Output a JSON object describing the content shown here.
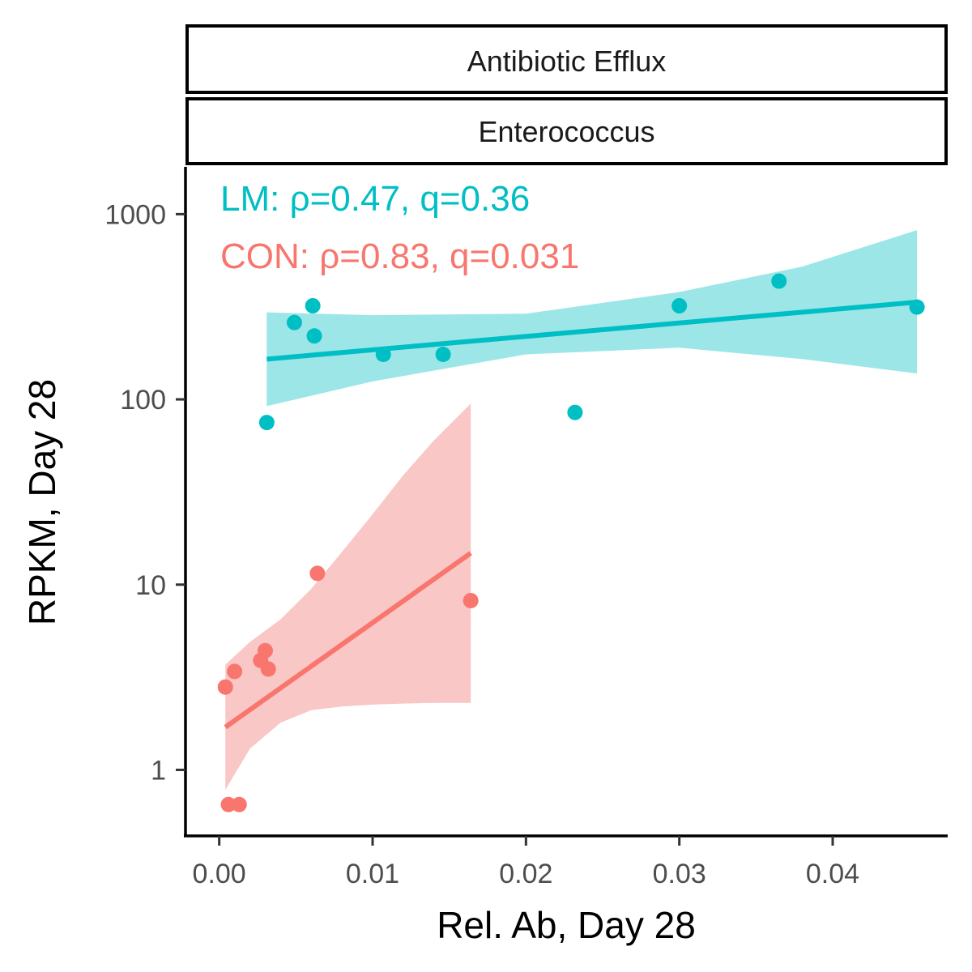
{
  "chart_data": {
    "type": "scatter",
    "facet_strips": [
      "Antibiotic Efflux",
      "Enterococcus"
    ],
    "xlabel": "Rel. Ab, Day 28",
    "ylabel": "RPKM, Day 28",
    "xlim": [
      -0.0022,
      0.0475
    ],
    "ylim": [
      0.44,
      1800
    ],
    "y_scale": "log10",
    "x_ticks": [
      {
        "value": 0.0,
        "label": "0.00"
      },
      {
        "value": 0.01,
        "label": "0.01"
      },
      {
        "value": 0.02,
        "label": "0.02"
      },
      {
        "value": 0.03,
        "label": "0.03"
      },
      {
        "value": 0.04,
        "label": "0.04"
      }
    ],
    "y_ticks": [
      {
        "value": 1,
        "label": "1"
      },
      {
        "value": 10,
        "label": "10"
      },
      {
        "value": 100,
        "label": "100"
      },
      {
        "value": 1000,
        "label": "1000"
      }
    ],
    "grid": false,
    "legend": "none",
    "annotations": [
      {
        "text": "LM: ρ=0.47, q=0.36",
        "color": "#00BFC4"
      },
      {
        "text": "CON: ρ=0.83, q=0.031",
        "color": "#F8766D"
      }
    ],
    "series": [
      {
        "color": "#00BFC4",
        "band_color": "#9CE6E8",
        "points": [
          [
            0.0031,
            75
          ],
          [
            0.0049,
            260
          ],
          [
            0.0061,
            320
          ],
          [
            0.0062,
            220
          ],
          [
            0.0107,
            175
          ],
          [
            0.0146,
            175
          ],
          [
            0.0232,
            85
          ],
          [
            0.03,
            320
          ],
          [
            0.0365,
            435
          ],
          [
            0.0455,
            315
          ]
        ],
        "fit_line": [
          [
            0.0031,
            165
          ],
          [
            0.0455,
            335
          ]
        ],
        "confidence_band": {
          "x": [
            0.0031,
            0.01,
            0.02,
            0.03,
            0.038,
            0.0455
          ],
          "upper": [
            295,
            285,
            290,
            380,
            520,
            820
          ],
          "lower": [
            92,
            125,
            175,
            190,
            165,
            138
          ]
        }
      },
      {
        "color": "#F8766D",
        "band_color": "#F9C7C5",
        "points": [
          [
            0.0004,
            2.8
          ],
          [
            0.0006,
            0.65
          ],
          [
            0.001,
            3.4
          ],
          [
            0.0013,
            0.65
          ],
          [
            0.0027,
            3.9
          ],
          [
            0.003,
            4.4
          ],
          [
            0.0032,
            3.5
          ],
          [
            0.0064,
            11.5
          ],
          [
            0.0164,
            8.2
          ]
        ],
        "fit_line": [
          [
            0.0004,
            1.7
          ],
          [
            0.0164,
            14.8
          ]
        ],
        "confidence_band": {
          "x": [
            0.0004,
            0.002,
            0.004,
            0.006,
            0.008,
            0.01,
            0.012,
            0.014,
            0.0164
          ],
          "upper": [
            3.7,
            4.9,
            6.5,
            9.5,
            15,
            24,
            39,
            60,
            95
          ],
          "lower": [
            0.78,
            1.3,
            1.8,
            2.1,
            2.2,
            2.25,
            2.28,
            2.3,
            2.3
          ]
        }
      }
    ]
  }
}
